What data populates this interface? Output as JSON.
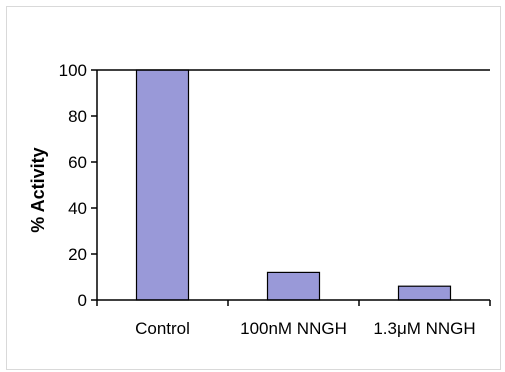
{
  "chart_data": {
    "type": "bar",
    "categories": [
      "Control",
      "100nM NNGH",
      "1.3μM NNGH"
    ],
    "values": [
      100,
      12,
      6
    ],
    "title": "",
    "xlabel": "",
    "ylabel": "% Activity",
    "ylim": [
      0,
      100
    ],
    "yticks": [
      "0",
      "20",
      "40",
      "60",
      "80",
      "100"
    ],
    "grid": false,
    "bar_color": "#9999d8",
    "bar_edge_color": "#000000"
  }
}
